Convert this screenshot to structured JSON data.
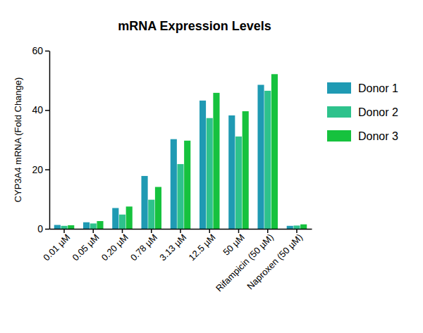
{
  "chart_data": {
    "type": "bar",
    "title": "mRNA Expression Levels",
    "y_label": "CYP3A4 mRNA (Fold Change)",
    "categories": [
      "0.01 µM",
      "0.05 µM",
      "0.20 µM",
      "0.78 µM",
      "3.13 µM",
      "12.5 µM",
      "50 µM",
      "Rifampicin (50 µM)",
      "Naproxen (50 µM)"
    ],
    "series": [
      {
        "name": "Donor 1",
        "color": "#1f9ab3",
        "values": [
          1.3,
          2.2,
          7.0,
          17.8,
          30.2,
          43.2,
          38.2,
          48.5,
          1.0
        ]
      },
      {
        "name": "Donor 2",
        "color": "#2ec28c",
        "values": [
          1.0,
          1.8,
          4.8,
          9.8,
          21.8,
          37.3,
          31.1,
          46.5,
          1.1
        ]
      },
      {
        "name": "Donor 3",
        "color": "#16c23e",
        "values": [
          1.2,
          2.6,
          7.5,
          14.1,
          29.7,
          45.8,
          39.6,
          52.1,
          1.5
        ]
      }
    ],
    "ylim": [
      0,
      60
    ],
    "yticks": [
      0,
      20,
      40,
      60
    ],
    "grid": false,
    "legend": "right"
  }
}
